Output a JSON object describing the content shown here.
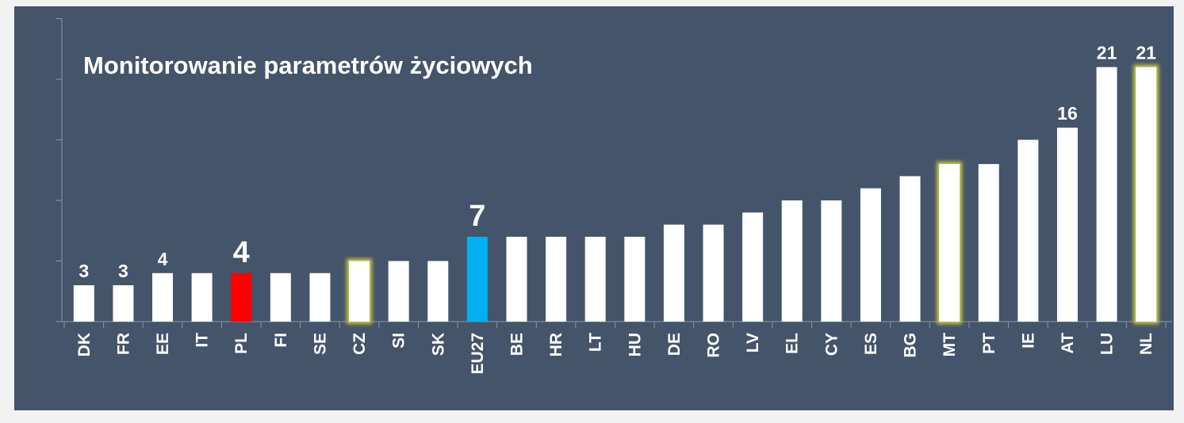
{
  "chart_data": {
    "type": "bar",
    "title": "Monitorowanie parametrów życiowych",
    "categories": [
      "DK",
      "FR",
      "EE",
      "IT",
      "PL",
      "FI",
      "SE",
      "CZ",
      "SI",
      "SK",
      "EU27",
      "BE",
      "HR",
      "LT",
      "HU",
      "DE",
      "RO",
      "LV",
      "EL",
      "CY",
      "ES",
      "BG",
      "MT",
      "PT",
      "IE",
      "AT",
      "LU",
      "NL"
    ],
    "values": [
      3,
      3,
      4,
      4,
      4,
      4,
      4,
      5,
      5,
      5,
      7,
      7,
      7,
      7,
      7,
      8,
      8,
      9,
      10,
      10,
      11,
      12,
      13,
      13,
      15,
      16,
      21,
      21
    ],
    "value_labels": [
      "3",
      "3",
      "4",
      null,
      "4",
      null,
      null,
      null,
      null,
      null,
      "7",
      null,
      null,
      null,
      null,
      null,
      null,
      null,
      null,
      null,
      null,
      null,
      null,
      null,
      null,
      "16",
      "21",
      "21"
    ],
    "colors": [
      "#ffffff",
      "#ffffff",
      "#ffffff",
      "#ffffff",
      "#ff0000",
      "#ffffff",
      "#ffffff",
      "#ffffff",
      "#ffffff",
      "#ffffff",
      "#00b0f0",
      "#ffffff",
      "#ffffff",
      "#ffffff",
      "#ffffff",
      "#ffffff",
      "#ffffff",
      "#ffffff",
      "#ffffff",
      "#ffffff",
      "#ffffff",
      "#ffffff",
      "#ffffff",
      "#ffffff",
      "#ffffff",
      "#ffffff",
      "#ffffff",
      "#ffffff"
    ],
    "glow": [
      false,
      false,
      false,
      false,
      false,
      false,
      false,
      true,
      false,
      false,
      false,
      false,
      false,
      false,
      false,
      false,
      false,
      false,
      false,
      false,
      false,
      false,
      true,
      false,
      false,
      false,
      false,
      true
    ],
    "ylim": [
      0,
      25
    ],
    "yticks": [
      0,
      5,
      10,
      15,
      20,
      25
    ],
    "grid": false
  }
}
